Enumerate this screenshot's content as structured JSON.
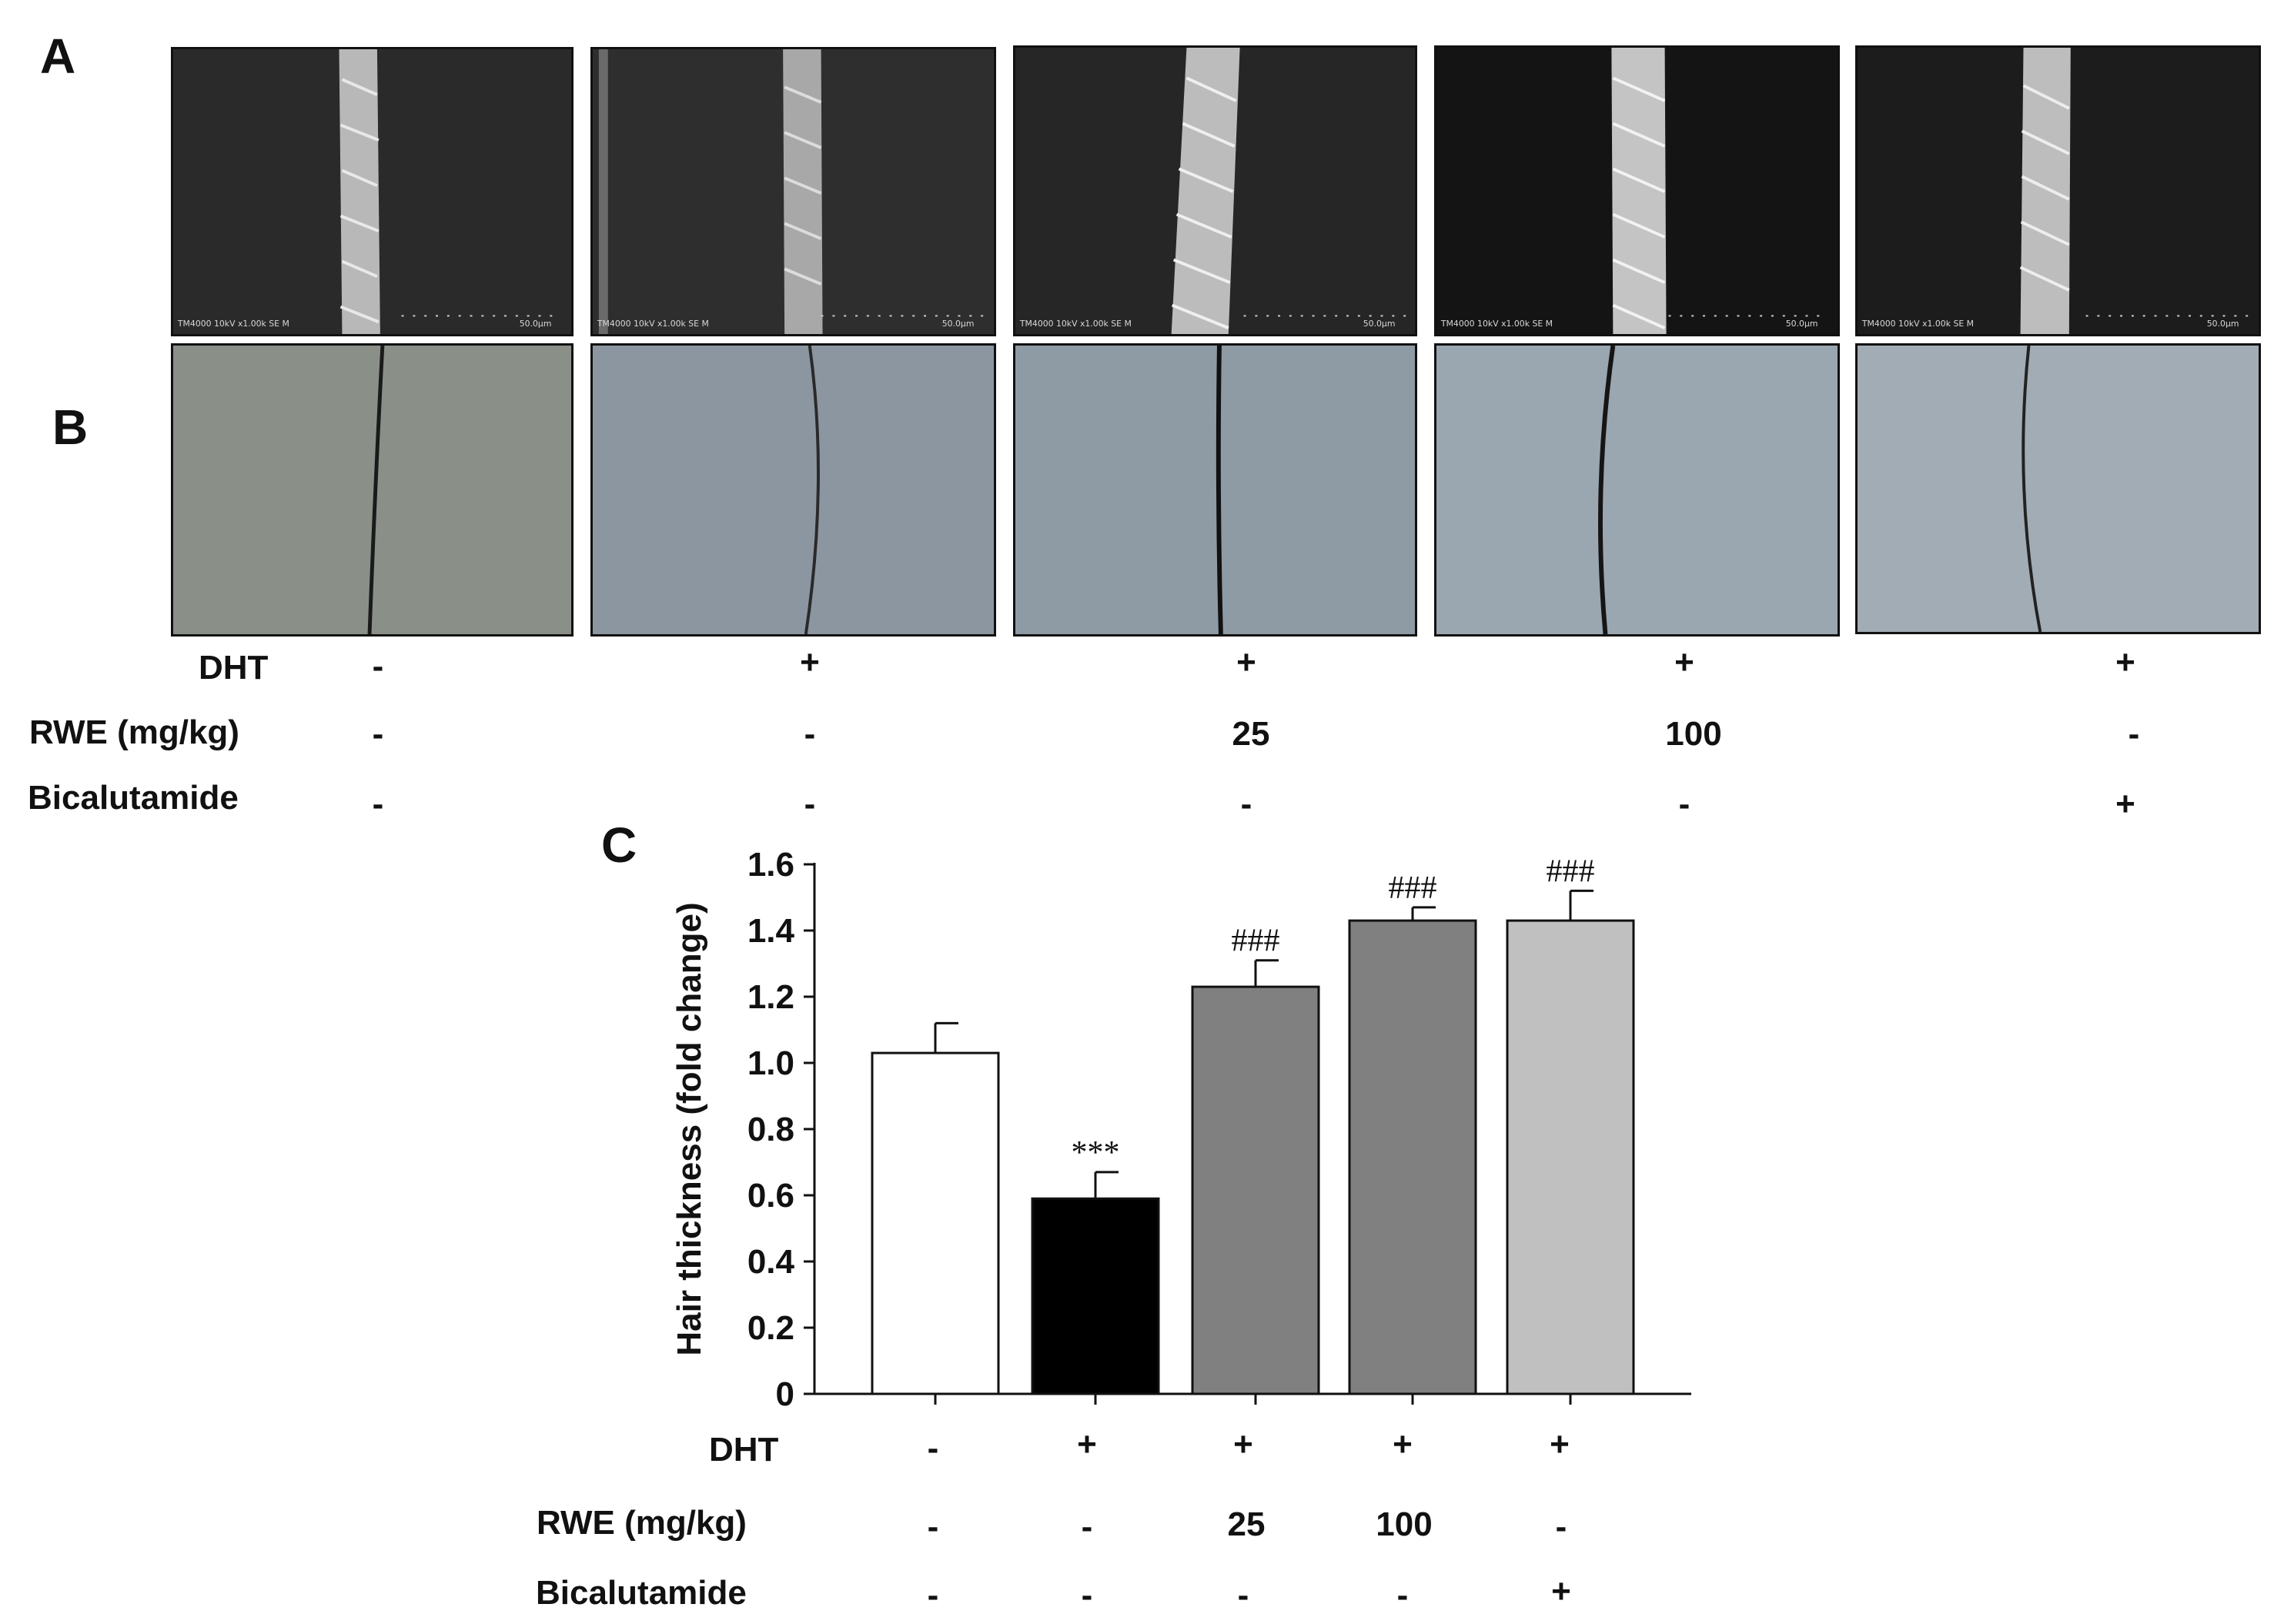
{
  "panels": {
    "a": "A",
    "b": "B",
    "c": "C"
  },
  "sem_images": [
    {
      "caption_left": "TM4000 10kV x1.00k SE M",
      "caption_right": "50.0µm"
    },
    {
      "caption_left": "TM4000 10kV x1.00k SE M",
      "caption_right": "50.0µm"
    },
    {
      "caption_left": "TM4000 10kV x1.00k SE M",
      "caption_right": "50.0µm"
    },
    {
      "caption_left": "TM4000 10kV x1.00k SE M",
      "caption_right": "50.0µm"
    },
    {
      "caption_left": "TM4000 10kV x1.00k SE M",
      "caption_right": "50.0µm"
    }
  ],
  "treatment_table_top": {
    "rows": [
      {
        "label": "DHT",
        "values": [
          "-",
          "+",
          "+",
          "+",
          "+"
        ]
      },
      {
        "label": "RWE (mg/kg)",
        "values": [
          "-",
          "-",
          "25",
          "100",
          "-"
        ]
      },
      {
        "label": "Bicalutamide",
        "values": [
          "-",
          "-",
          "-",
          "-",
          "+"
        ]
      }
    ]
  },
  "treatment_table_bottom": {
    "rows": [
      {
        "label": "DHT",
        "values": [
          "-",
          "+",
          "+",
          "+",
          "+"
        ]
      },
      {
        "label": "RWE (mg/kg)",
        "values": [
          "-",
          "-",
          "25",
          "100",
          "-"
        ]
      },
      {
        "label": "Bicalutamide",
        "values": [
          "-",
          "-",
          "-",
          "-",
          "+"
        ]
      }
    ]
  },
  "colors": {
    "bar_control": "#ffffff",
    "bar_dht": "#000000",
    "bar_rwe25": "#808080",
    "bar_rwe100": "#808080",
    "bar_bicalutamide": "#c0c0c0",
    "sem_background": "#2a2a2a",
    "photo_background": "#8a97a0"
  },
  "chart_data": {
    "type": "bar",
    "categories": [
      "",
      "",
      "",
      "",
      ""
    ],
    "values": [
      1.03,
      0.59,
      1.23,
      1.43,
      1.43
    ],
    "errors": [
      0.09,
      0.08,
      0.08,
      0.04,
      0.09
    ],
    "annotations": [
      "",
      "***",
      "###",
      "###",
      "###"
    ],
    "bar_colors": [
      "#ffffff",
      "#000000",
      "#808080",
      "#808080",
      "#c0c0c0"
    ],
    "ylabel": "Hair thickness (fold change)",
    "xlabel": "",
    "ylim": [
      0,
      1.6
    ],
    "yticks": [
      "0",
      "0.2",
      "0.4",
      "0.6",
      "0.8",
      "1.0",
      "1.2",
      "1.4",
      "1.6"
    ],
    "grid": false
  }
}
